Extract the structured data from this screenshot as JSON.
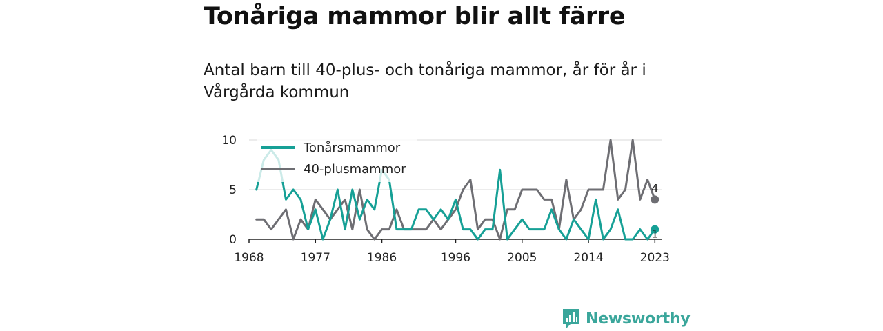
{
  "title": "Tonåriga mammor blir allt färre",
  "subtitle": "Antal barn till 40-plus- och tonåriga mammor, år för år i Vårgårda kommun",
  "logo": {
    "text": "Newsworthy",
    "color": "#3aa69b",
    "icon": "bar-chart-badge-icon"
  },
  "chart_data": {
    "type": "line",
    "x": [
      1969,
      1970,
      1971,
      1972,
      1973,
      1974,
      1975,
      1976,
      1977,
      1978,
      1979,
      1980,
      1981,
      1982,
      1983,
      1984,
      1985,
      1986,
      1987,
      1988,
      1989,
      1990,
      1991,
      1992,
      1993,
      1994,
      1995,
      1996,
      1997,
      1998,
      1999,
      2000,
      2001,
      2002,
      2003,
      2004,
      2005,
      2006,
      2007,
      2008,
      2009,
      2010,
      2011,
      2012,
      2013,
      2014,
      2015,
      2016,
      2017,
      2018,
      2019,
      2020,
      2021,
      2022,
      2023
    ],
    "series": [
      {
        "name": "Tonårsmammor",
        "color": "#16a096",
        "values": [
          5,
          8,
          9,
          8,
          4,
          5,
          4,
          1,
          3,
          0,
          2,
          5,
          1,
          5,
          2,
          4,
          3,
          7,
          6,
          1,
          1,
          1,
          3,
          3,
          2,
          3,
          2,
          4,
          1,
          1,
          0,
          1,
          1,
          7,
          0,
          1,
          2,
          1,
          1,
          1,
          3,
          1,
          0,
          2,
          1,
          0,
          4,
          0,
          1,
          3,
          0,
          0,
          1,
          0,
          1
        ]
      },
      {
        "name": "40-plusmammor",
        "color": "#6e6e73",
        "values": [
          2,
          2,
          1,
          2,
          3,
          0,
          2,
          1,
          4,
          3,
          2,
          3,
          4,
          1,
          5,
          1,
          0,
          1,
          1,
          3,
          1,
          1,
          1,
          1,
          2,
          1,
          2,
          3,
          5,
          6,
          1,
          2,
          2,
          0,
          3,
          3,
          5,
          5,
          5,
          4,
          4,
          1,
          6,
          2,
          3,
          5,
          5,
          5,
          10,
          4,
          5,
          10,
          4,
          6,
          4
        ]
      }
    ],
    "x_ticks": [
      "1968",
      "1977",
      "1986",
      "1996",
      "2005",
      "2014",
      "2023"
    ],
    "y_ticks": [
      "0",
      "5",
      "10"
    ],
    "xlim": [
      1968,
      2024
    ],
    "ylim": [
      0,
      10
    ],
    "grid": "horizontal",
    "legend": "top-left",
    "end_labels": [
      "1",
      "4"
    ]
  }
}
